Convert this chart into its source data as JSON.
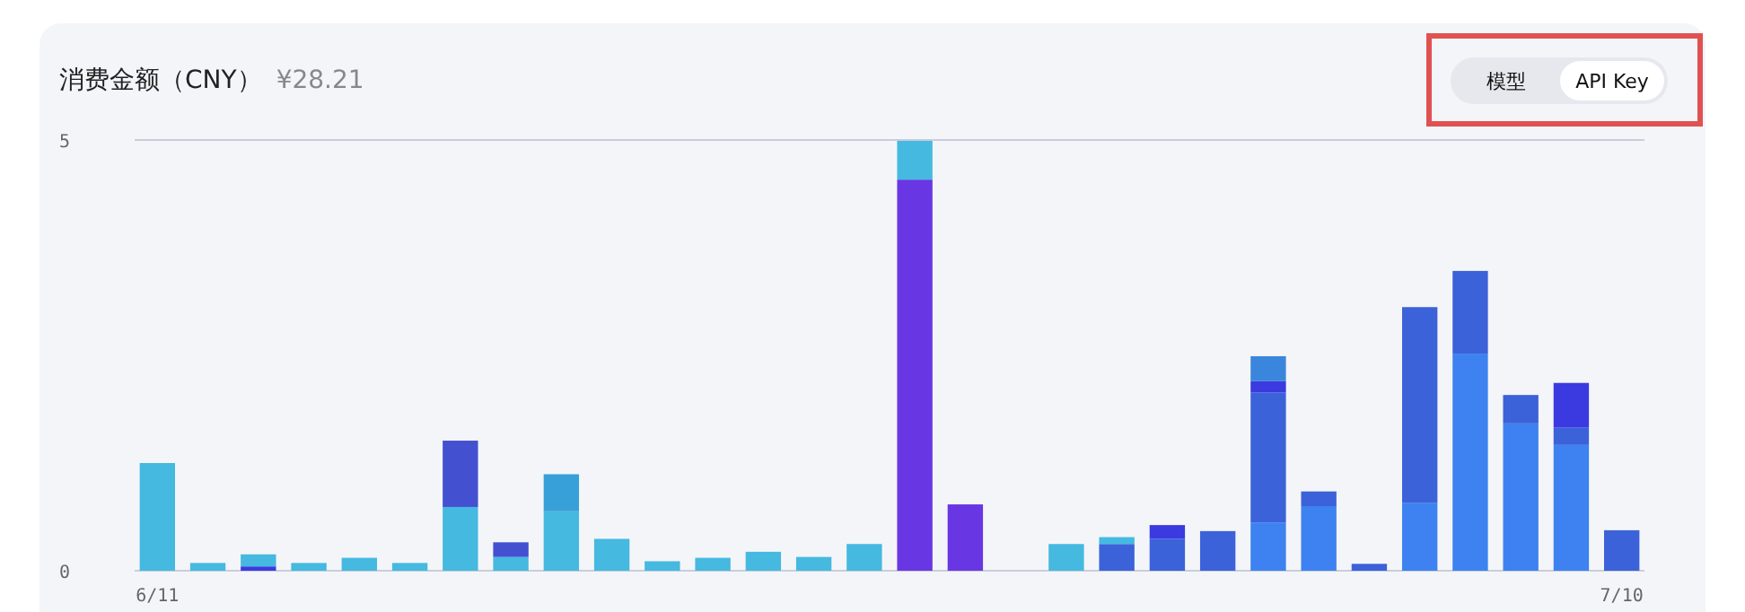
{
  "chart_data": {
    "type": "bar",
    "title": "消费金额（CNY）",
    "subtitle": "¥28.21",
    "stacked": true,
    "ylim": [
      0,
      5
    ],
    "yticks": [
      0,
      5
    ],
    "categories": [
      "6/11",
      null,
      null,
      null,
      null,
      null,
      null,
      null,
      null,
      null,
      null,
      null,
      null,
      null,
      null,
      null,
      null,
      null,
      null,
      null,
      null,
      null,
      null,
      null,
      null,
      null,
      null,
      null,
      null,
      "7/10"
    ],
    "annotations": [
      "模型",
      "API Key"
    ],
    "series": [
      {
        "color": "#3d82f0",
        "values": [
          null,
          null,
          null,
          null,
          null,
          null,
          null,
          null,
          null,
          null,
          null,
          null,
          null,
          null,
          null,
          null,
          null,
          null,
          null,
          null,
          null,
          null,
          0.56,
          0.75,
          null,
          0.79,
          2.52,
          1.71,
          1.46,
          null
        ]
      },
      {
        "color": "#3c62d9",
        "values": [
          null,
          null,
          null,
          null,
          null,
          null,
          null,
          null,
          null,
          null,
          null,
          null,
          null,
          null,
          null,
          null,
          null,
          null,
          null,
          0.31,
          0.37,
          0.46,
          1.51,
          0.17,
          0.08,
          2.27,
          0.96,
          0.33,
          0.2,
          0.47
        ]
      },
      {
        "color": "#3a3ae0",
        "values": [
          null,
          null,
          0.05,
          null,
          null,
          null,
          null,
          null,
          null,
          null,
          null,
          null,
          null,
          null,
          null,
          null,
          null,
          null,
          null,
          null,
          0.16,
          null,
          0.13,
          null,
          null,
          null,
          null,
          null,
          0.52,
          null
        ]
      },
      {
        "color": "#6936e3",
        "values": [
          null,
          null,
          null,
          null,
          null,
          null,
          null,
          null,
          null,
          null,
          null,
          null,
          null,
          null,
          null,
          4.54,
          0.77,
          null,
          null,
          null,
          null,
          null,
          null,
          null,
          null,
          null,
          null,
          null,
          null,
          null
        ]
      },
      {
        "color": "#45b9e0",
        "values": [
          1.25,
          0.09,
          0.14,
          0.09,
          0.15,
          0.09,
          0.74,
          0.16,
          0.69,
          0.37,
          0.11,
          0.15,
          0.22,
          0.16,
          0.31,
          0.45,
          null,
          null,
          0.31,
          0.08,
          null,
          null,
          null,
          null,
          null,
          null,
          null,
          null,
          null,
          null
        ]
      },
      {
        "color": "#4350d0",
        "values": [
          null,
          null,
          null,
          null,
          null,
          null,
          0.77,
          0.17,
          null,
          null,
          null,
          null,
          null,
          null,
          null,
          null,
          null,
          null,
          null,
          null,
          null,
          null,
          null,
          null,
          null,
          null,
          null,
          null,
          null,
          null
        ]
      },
      {
        "color": "#38a0d8",
        "values": [
          null,
          null,
          null,
          null,
          null,
          null,
          null,
          null,
          0.43,
          null,
          null,
          null,
          null,
          null,
          null,
          null,
          null,
          null,
          null,
          null,
          null,
          null,
          null,
          null,
          null,
          null,
          null,
          null,
          null,
          null
        ]
      },
      {
        "color": "#3a86dc",
        "values": [
          null,
          null,
          null,
          null,
          null,
          null,
          null,
          null,
          null,
          null,
          null,
          null,
          null,
          null,
          null,
          null,
          null,
          null,
          null,
          null,
          null,
          null,
          0.29,
          null,
          null,
          null,
          null,
          null,
          null,
          null
        ]
      }
    ]
  }
}
